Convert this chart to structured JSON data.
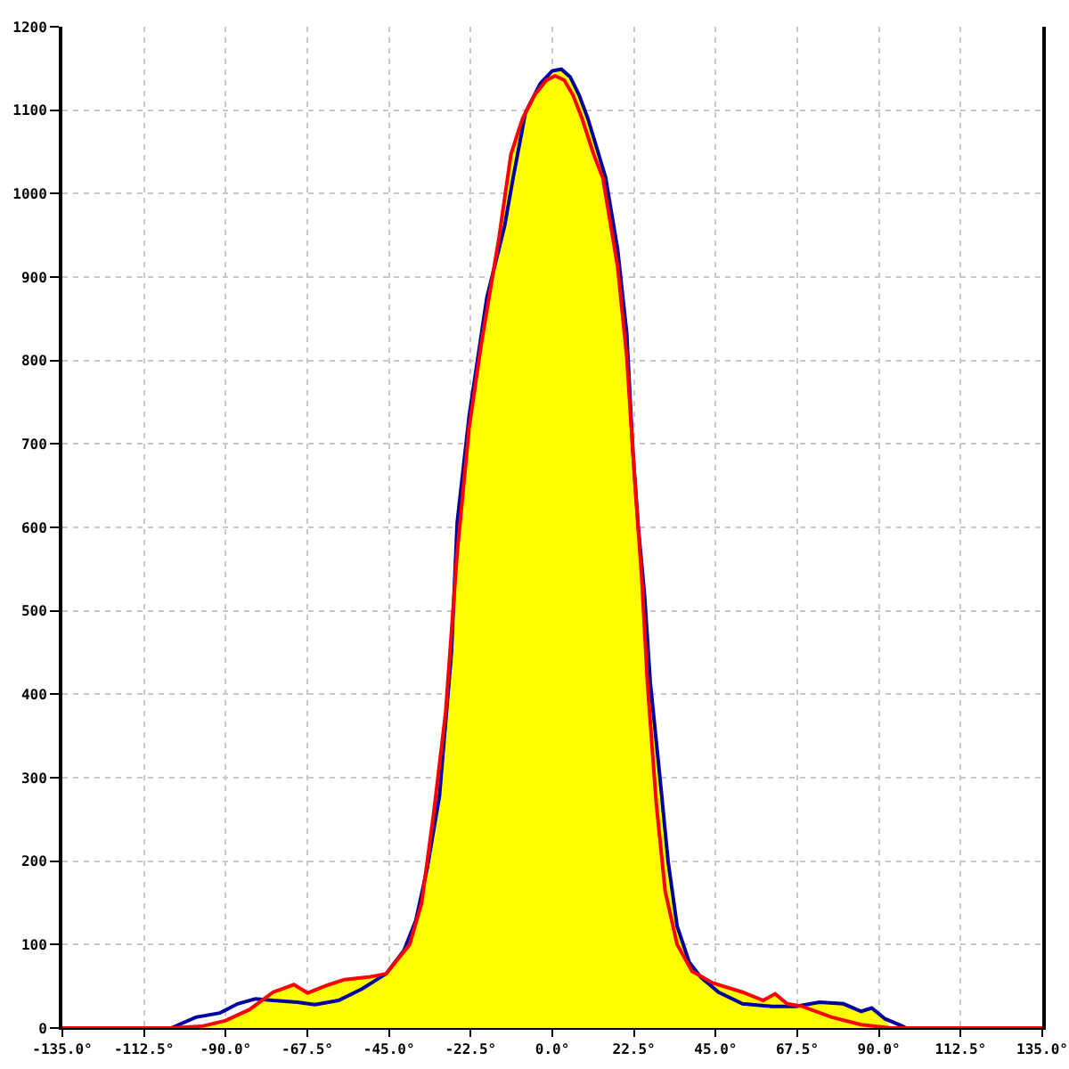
{
  "chart_data": {
    "type": "line",
    "xlim": [
      -135,
      135
    ],
    "xticks": [
      {
        "value": -135,
        "label": "-135.0°"
      },
      {
        "value": -112.5,
        "label": "-112.5°"
      },
      {
        "value": -90,
        "label": "-90.0°"
      },
      {
        "value": -67.5,
        "label": "-67.5°"
      },
      {
        "value": -45,
        "label": "-45.0°"
      },
      {
        "value": -22.5,
        "label": "-22.5°"
      },
      {
        "value": 0,
        "label": "0.0°"
      },
      {
        "value": 22.5,
        "label": "22.5°"
      },
      {
        "value": 45,
        "label": "45.0°"
      },
      {
        "value": 67.5,
        "label": "67.5°"
      },
      {
        "value": 90,
        "label": "90.0°"
      },
      {
        "value": 112.5,
        "label": "112.5°"
      },
      {
        "value": 135,
        "label": "135.0°"
      }
    ],
    "ylim": [
      0,
      1200
    ],
    "yticks": [
      0,
      100,
      200,
      300,
      400,
      500,
      600,
      700,
      800,
      900,
      1000,
      1100,
      1200
    ],
    "grid": true,
    "series": [
      {
        "type": "area",
        "color": "#ffff00",
        "x": [
          -105,
          -96.6,
          -90.0,
          -83.5,
          -76.9,
          -71.2,
          -67.4,
          -62.2,
          -57.3,
          -50.7,
          -45.8,
          -40.9,
          -37.6,
          -34.4,
          -31.1,
          -27.8,
          -26.2,
          -22.9,
          -19.6,
          -14.7,
          -11.4,
          -8.2,
          -4.9,
          -1.6,
          0,
          2.5,
          4.9,
          7.4,
          9.8,
          12.3,
          14.7,
          18.0,
          20.5,
          22.1,
          23.7,
          25.4,
          27.0,
          29.5,
          31.9,
          34.4,
          37.7,
          40.9,
          44.2,
          52.4,
          58.1,
          61.4,
          64.7,
          67.1,
          73.6,
          80.2,
          85.1,
          88.0,
          91.7,
          93.3
        ],
        "values": [
          0,
          2,
          9,
          22,
          43,
          52,
          42,
          51,
          58,
          61,
          65,
          93,
          129,
          193,
          278,
          449,
          606,
          734,
          819,
          947,
          1047,
          1090,
          1118,
          1136,
          1147,
          1149,
          1140,
          1118,
          1090,
          1054,
          1019,
          933,
          833,
          698,
          599,
          520,
          414,
          307,
          200,
          122,
          79,
          61,
          54,
          43,
          33,
          41,
          29,
          26,
          31,
          29,
          20,
          24,
          11,
          0
        ]
      },
      {
        "color": "#0000a0",
        "x": [
          -105,
          -98.2,
          -91.6,
          -86.7,
          -81.8,
          -76.9,
          -70.3,
          -65.4,
          -58.9,
          -52.4,
          -45.8,
          -40.9,
          -37.6,
          -34.4,
          -31.1,
          -27.8,
          -26.2,
          -22.9,
          -18.0,
          -13.1,
          -10.8,
          -7.4,
          -3.3,
          0,
          2.5,
          4.9,
          7.4,
          9.8,
          12.3,
          14.7,
          18.0,
          20.5,
          22.1,
          23.7,
          25.4,
          27.0,
          29.5,
          31.9,
          34.4,
          37.7,
          40.9,
          45.8,
          52.4,
          60.5,
          67.1,
          73.6,
          80.2,
          85.1,
          88.0,
          91.7,
          96.6,
          97.4
        ],
        "values": [
          0,
          13,
          18,
          29,
          35,
          33,
          31,
          28,
          33,
          47,
          65,
          93,
          129,
          193,
          278,
          449,
          606,
          734,
          876,
          962,
          1019,
          1097,
          1132,
          1147,
          1149,
          1140,
          1118,
          1090,
          1054,
          1019,
          933,
          833,
          698,
          599,
          520,
          414,
          307,
          200,
          122,
          79,
          61,
          43,
          29,
          26,
          26,
          31,
          29,
          20,
          24,
          11,
          2,
          0
        ]
      },
      {
        "color": "#ff0000",
        "x": [
          -135,
          -105,
          -96.6,
          -90.0,
          -83.5,
          -76.9,
          -71.2,
          -67.4,
          -62.2,
          -57.3,
          -50.7,
          -45.8,
          -39.3,
          -36.0,
          -32.7,
          -29.4,
          -26.2,
          -22.9,
          -19.6,
          -14.7,
          -11.4,
          -8.2,
          -4.9,
          -1.6,
          0.8,
          3.3,
          5.7,
          8.2,
          11.4,
          13.9,
          18.0,
          20.5,
          22.6,
          24.6,
          26.2,
          28.6,
          31.1,
          34.4,
          38.5,
          44.2,
          52.4,
          58.1,
          61.4,
          64.7,
          68.8,
          77.0,
          85.1,
          93.3,
          135
        ],
        "values": [
          0,
          0,
          2,
          9,
          22,
          43,
          52,
          42,
          51,
          58,
          61,
          65,
          100,
          150,
          257,
          378,
          570,
          720,
          819,
          947,
          1047,
          1090,
          1118,
          1136,
          1141,
          1136,
          1118,
          1090,
          1047,
          1019,
          912,
          805,
          663,
          542,
          414,
          271,
          164,
          100,
          68,
          54,
          43,
          33,
          41,
          29,
          26,
          13,
          4,
          0,
          0
        ]
      }
    ]
  }
}
